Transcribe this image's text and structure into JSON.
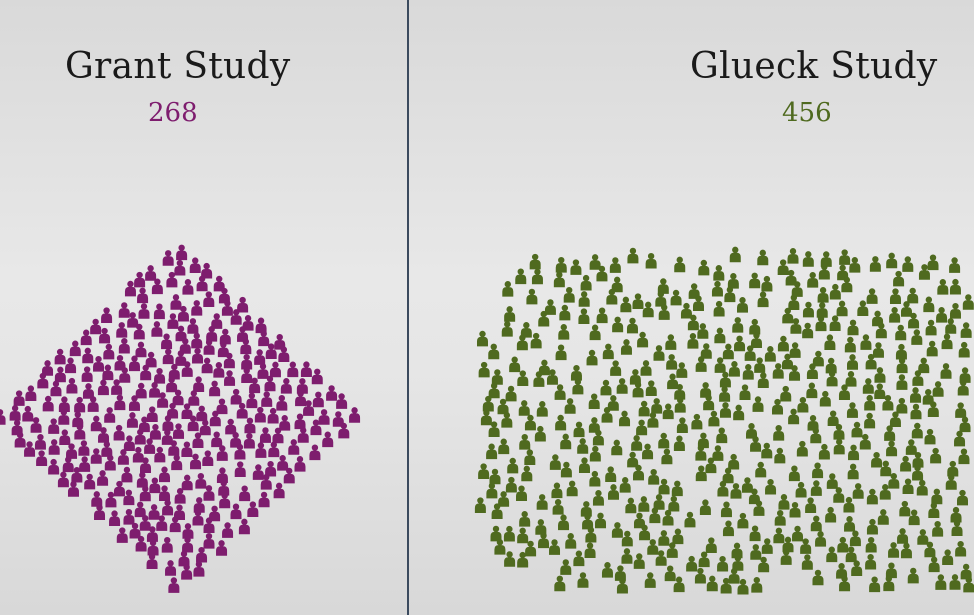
{
  "studies": [
    {
      "title": "Grant Study",
      "count": "268",
      "color": "#7e1d6e",
      "icon": "person-icon"
    },
    {
      "title": "Glueck Study",
      "count": "456",
      "color": "#4f6a1f",
      "icon": "person-icon"
    }
  ]
}
